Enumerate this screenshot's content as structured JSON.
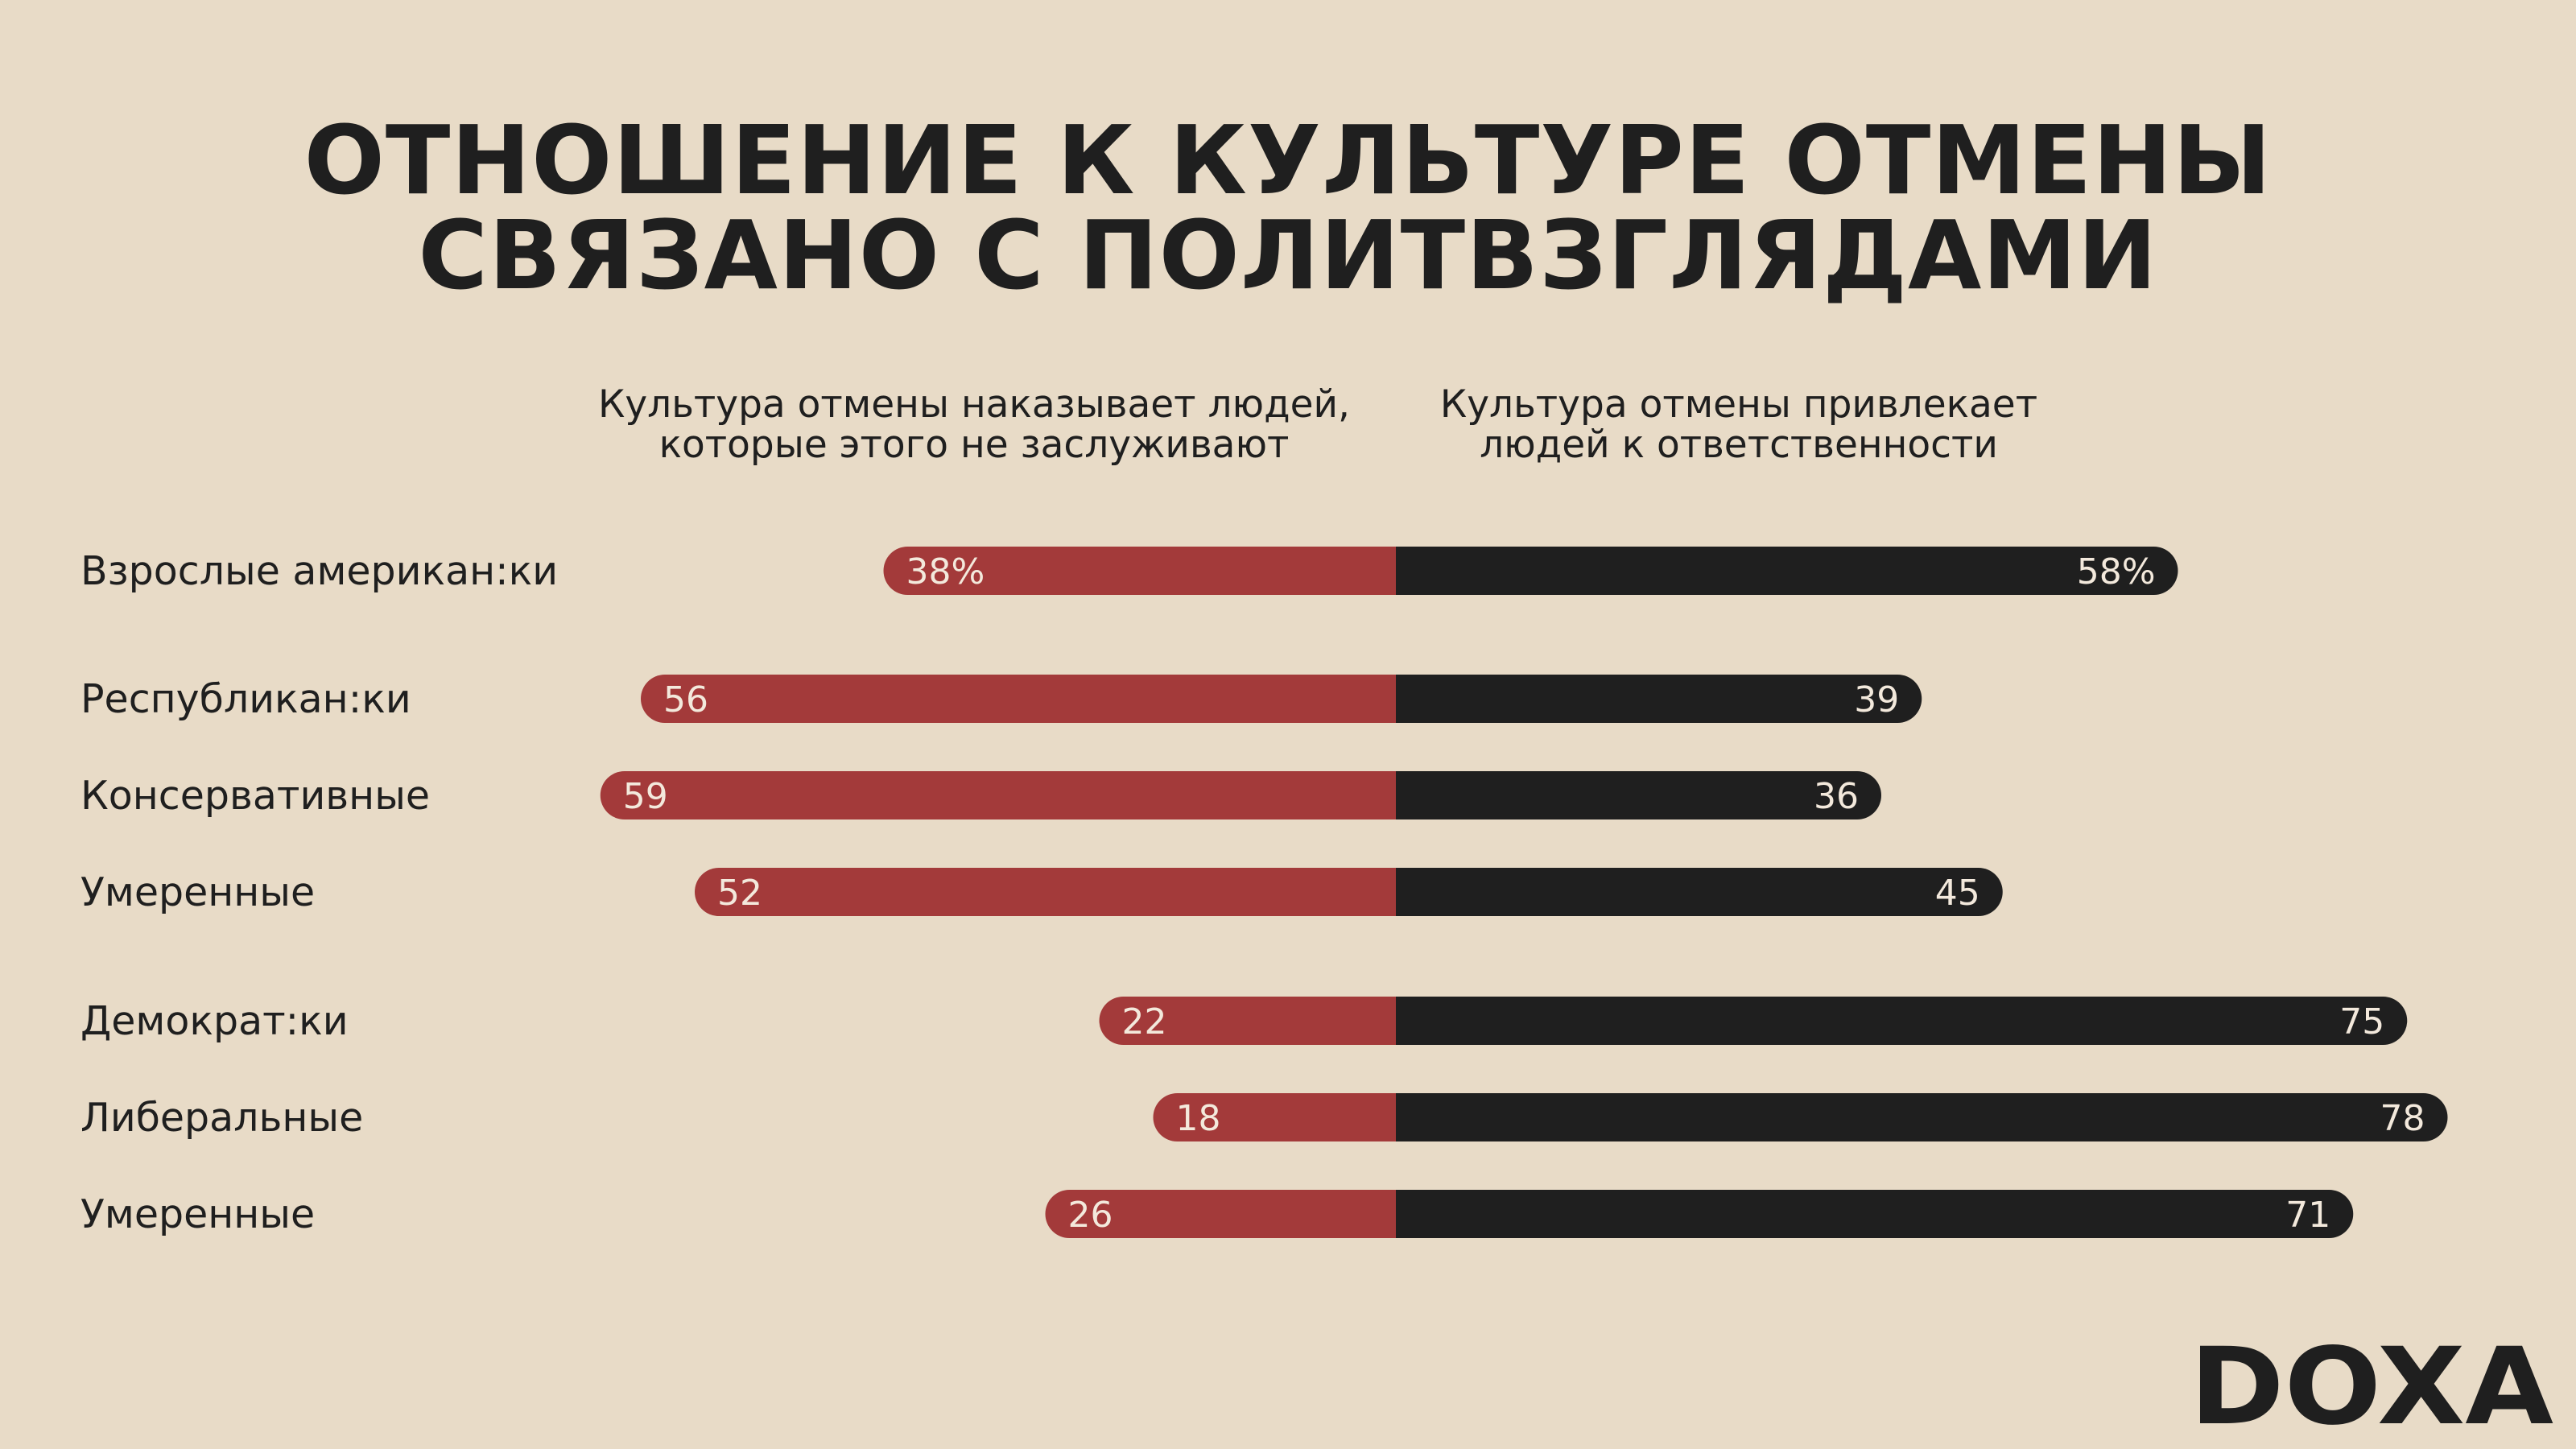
{
  "title": {
    "line1": "ОТНОШЕНИЕ К КУЛЬТУРЕ ОТМЕНЫ",
    "line2": "СВЯЗАНО С ПОЛИТВЗГЛЯДАМИ"
  },
  "column_headers": {
    "left_line1": "Культура отмены наказывает людей,",
    "left_line2": "которые этого не заслуживают",
    "right_line1": "Культура отмены привлекает",
    "right_line2": "людей к ответственности"
  },
  "logo": {
    "text": "DOXA"
  },
  "colors": {
    "background": "#e8dbc7",
    "left_bar": "#a33a3a",
    "right_bar": "#1f1f1f",
    "text": "#1f1f1f",
    "bar_label": "#f3e9dc"
  },
  "chart_data": {
    "type": "bar",
    "orientation": "horizontal-diverging",
    "categories": [
      "Взрослые американ:ки",
      "Республикан:ки",
      "Консервативные",
      "Умеренные",
      "Демократ:ки",
      "Либеральные",
      "Умеренные"
    ],
    "series": [
      {
        "name": "Культура отмены наказывает людей, которые этого не заслуживают",
        "values": [
          38,
          56,
          59,
          52,
          22,
          18,
          26
        ],
        "labels": [
          "38%",
          "56",
          "59",
          "52",
          "22",
          "18",
          "26"
        ]
      },
      {
        "name": "Культура отмены привлекает людей к ответственности",
        "values": [
          58,
          39,
          36,
          45,
          75,
          78,
          71
        ],
        "labels": [
          "58%",
          "39",
          "36",
          "45",
          "75",
          "78",
          "71"
        ]
      }
    ],
    "groups": [
      [
        0
      ],
      [
        1,
        2,
        3
      ],
      [
        4,
        5,
        6
      ]
    ],
    "unit": "%",
    "title": "ОТНОШЕНИЕ К КУЛЬТУРЕ ОТМЕНЫ СВЯЗАНО С ПОЛИТВЗГЛЯДАМИ",
    "xlabel": "",
    "ylabel": "",
    "grid": false,
    "legend": "column headers above bars"
  }
}
